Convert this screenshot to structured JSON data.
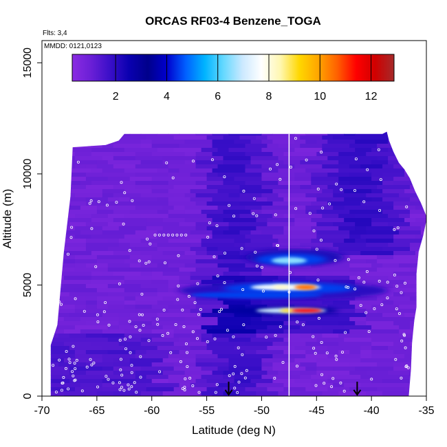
{
  "chart_data": {
    "type": "heatmap",
    "title": "ORCAS RF03-4 Benzene_TOGA",
    "flights_label": "Flts: 3,4",
    "dates_label": "MMDD: 0121,0123",
    "xlabel": "Latitude (deg N)",
    "ylabel": "Altitude (m)",
    "xlim": [
      -70,
      -35
    ],
    "ylim": [
      0,
      16000
    ],
    "x_ticks": [
      "-70",
      "-65",
      "-60",
      "-55",
      "-50",
      "-45",
      "-40",
      "-35"
    ],
    "x_tick_values": [
      -70,
      -65,
      -60,
      -55,
      -50,
      -45,
      -40,
      -35
    ],
    "y_ticks": [
      "0",
      "5000",
      "10000",
      "15000"
    ],
    "y_tick_values": [
      0,
      5000,
      10000,
      15000
    ],
    "colorbar": {
      "range": [
        0.3,
        12.9
      ],
      "tick_labels": [
        "2",
        "4",
        "6",
        "8",
        "10",
        "12"
      ],
      "tick_values": [
        2,
        4,
        6,
        8,
        10,
        12
      ],
      "colors": [
        "#8a2be2",
        "#6a1fd6",
        "#3a0fc8",
        "#0a00b0",
        "#00008b",
        "#0000cd",
        "#0060ff",
        "#00b4ff",
        "#66d9ff",
        "#cce9ff",
        "#ffffff",
        "#fff7b0",
        "#ffd700",
        "#ffa500",
        "#ff6000",
        "#ff0000",
        "#d00000",
        "#a52a2a"
      ]
    },
    "vertical_line_lat": -47.5,
    "arrow_lats": [
      -53,
      -41.3
    ],
    "hotspots": [
      {
        "lat": -47.0,
        "alt": 6100,
        "value": 6.5
      },
      {
        "lat": -47.8,
        "alt": 4900,
        "value": 10.5
      },
      {
        "lat": -46.0,
        "alt": 3850,
        "value": 11.5
      },
      {
        "lat": -50.5,
        "alt": 4550,
        "value": 4.5
      }
    ],
    "colors": {
      "background_field": "#7020e0",
      "sample_points": "#ffffff",
      "vertical_line": "#ffffff",
      "arrows": "#000000"
    }
  }
}
